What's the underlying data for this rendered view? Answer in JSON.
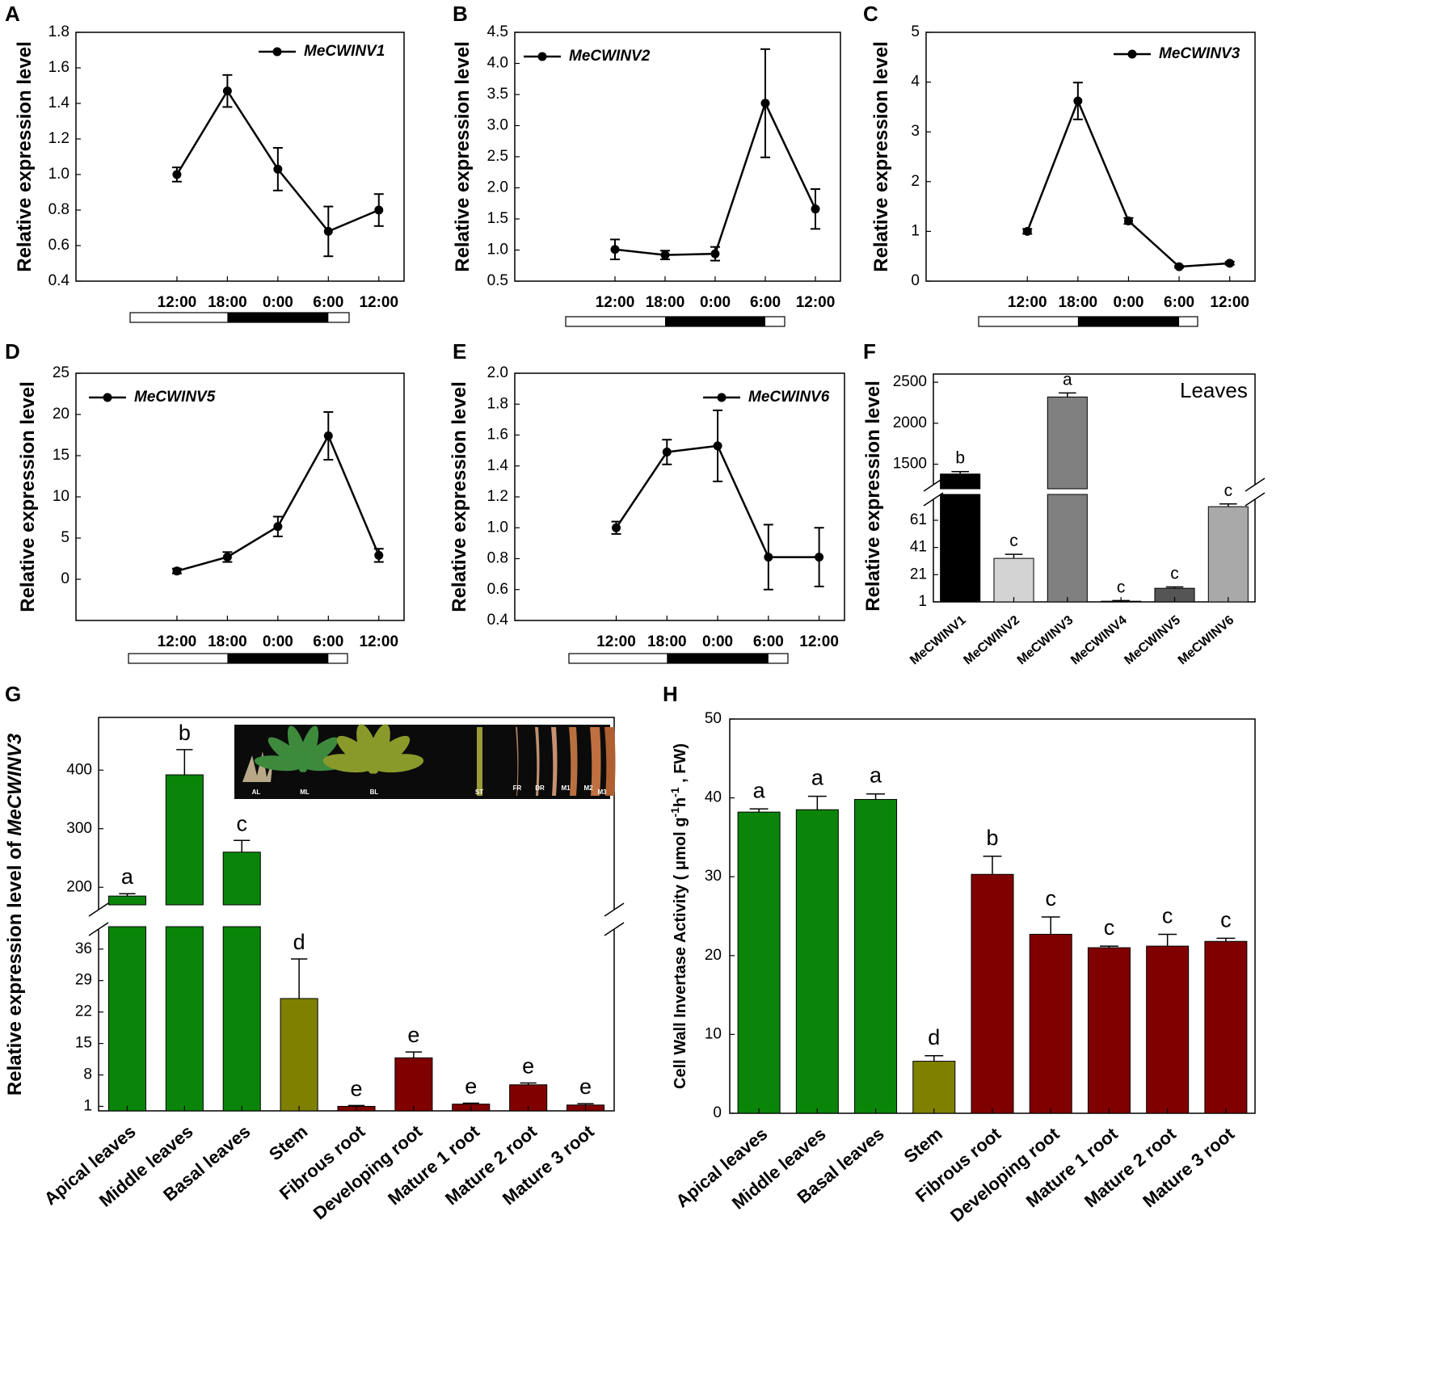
{
  "colors": {
    "line": "#000000",
    "leaves_green": "#0a850a",
    "stem_olive": "#808000",
    "root_darkred": "#800000",
    "bar_black": "#000000",
    "bar_light": "#d3d3d3",
    "bar_gray": "#808080",
    "bar_dark": "#555555",
    "bar_mid": "#a9a9a9"
  },
  "chart_data": [
    {
      "panel": "A",
      "type": "line",
      "legend": "MeCWINV1",
      "ylabel": "Relative expression level",
      "categories": [
        "12:00",
        "18:00",
        "0:00",
        "6:00",
        "12:00"
      ],
      "values": [
        1.0,
        1.47,
        1.03,
        0.68,
        0.8
      ],
      "errors": [
        0.04,
        0.09,
        0.12,
        0.14,
        0.09
      ],
      "ylim": [
        0.4,
        1.8
      ],
      "yticks": [
        0.4,
        0.6,
        0.8,
        1.0,
        1.2,
        1.4,
        1.6,
        1.8
      ],
      "ytick_decimals": 1,
      "xlim": [
        -1,
        5.5
      ],
      "photoperiod": "light-dark-light"
    },
    {
      "panel": "B",
      "type": "line",
      "legend": "MeCWINV2",
      "ylabel": "Relative expression level",
      "categories": [
        "12:00",
        "18:00",
        "0:00",
        "6:00",
        "12:00"
      ],
      "values": [
        1.01,
        0.92,
        0.94,
        3.36,
        1.66
      ],
      "errors": [
        0.16,
        0.07,
        0.11,
        0.87,
        0.32
      ],
      "ylim": [
        0.5,
        4.5
      ],
      "yticks": [
        0.5,
        1.0,
        1.5,
        2.0,
        2.5,
        3.0,
        3.5,
        4.0,
        4.5
      ],
      "ytick_decimals": 1,
      "xlim": [
        -1,
        5.5
      ],
      "photoperiod": "light-dark-light"
    },
    {
      "panel": "C",
      "type": "line",
      "legend": "MeCWINV3",
      "ylabel": "Relative expression level",
      "categories": [
        "12:00",
        "18:00",
        "0:00",
        "6:00",
        "12:00"
      ],
      "values": [
        1.0,
        3.62,
        1.21,
        0.29,
        0.36
      ],
      "errors": [
        0.05,
        0.37,
        0.06,
        0.02,
        0.03
      ],
      "ylim": [
        0,
        5
      ],
      "yticks": [
        0,
        1,
        2,
        3,
        4,
        5
      ],
      "ytick_decimals": 0,
      "xlim": [
        -1,
        5.5
      ],
      "photoperiod": "light-dark-light"
    },
    {
      "panel": "D",
      "type": "line",
      "legend": "MeCWINV5",
      "ylabel": "Relative expression level",
      "categories": [
        "12:00",
        "18:00",
        "0:00",
        "6:00",
        "12:00"
      ],
      "values": [
        1.0,
        2.7,
        6.4,
        17.4,
        2.9
      ],
      "errors": [
        0.3,
        0.6,
        1.2,
        2.9,
        0.8
      ],
      "ylim": [
        -5,
        25
      ],
      "yticks": [
        0,
        5,
        10,
        15,
        20,
        25
      ],
      "ytick_decimals": 0,
      "xlim": [
        -1,
        5.5
      ],
      "photoperiod": "light-dark-light"
    },
    {
      "panel": "E",
      "type": "line",
      "legend": "MeCWINV6",
      "ylabel": "Relative expression level",
      "categories": [
        "12:00",
        "18:00",
        "0:00",
        "6:00",
        "12:00"
      ],
      "values": [
        1.0,
        1.49,
        1.53,
        0.81,
        0.81
      ],
      "errors": [
        0.04,
        0.08,
        0.23,
        0.21,
        0.19
      ],
      "ylim": [
        0.4,
        2.0
      ],
      "yticks": [
        0.4,
        0.6,
        0.8,
        1.0,
        1.2,
        1.4,
        1.6,
        1.8,
        2.0
      ],
      "ytick_decimals": 1,
      "xlim": [
        -1,
        5.5
      ],
      "photoperiod": "light-dark-light"
    },
    {
      "panel": "F",
      "type": "bar",
      "title": "Leaves",
      "ylabel": "Relative expression level",
      "categories": [
        "MeCWINV1",
        "MeCWINV2",
        "MeCWINV3",
        "MeCWINV4",
        "MeCWINV5",
        "MeCWINV6"
      ],
      "values": [
        1380,
        33,
        2320,
        1.5,
        11,
        71
      ],
      "errors": [
        30,
        3,
        50,
        0.5,
        1,
        2
      ],
      "letters": [
        "b",
        "c",
        "a",
        "c",
        "c",
        "c"
      ],
      "bar_colors": [
        "#000000",
        "#d3d3d3",
        "#808080",
        "#555555",
        "#555555",
        "#a9a9a9"
      ],
      "y_axis_break": {
        "lower": [
          1,
          80
        ],
        "upper": [
          1200,
          2600
        ]
      },
      "yticks_lower": [
        1,
        21,
        41,
        61
      ],
      "yticks_upper": [
        1500,
        2000,
        2500
      ]
    },
    {
      "panel": "G",
      "type": "bar",
      "ylabel_prefix": "Relative expression level of ",
      "ylabel_gene": "MeCWINV3",
      "categories": [
        "Apical leaves",
        "Middle leaves",
        "Basal leaves",
        "Stem",
        "Fibrous root",
        "Developing root",
        "Mature 1 root",
        "Mature 2 root",
        "Mature 3 root"
      ],
      "values": [
        185,
        392,
        260,
        25,
        1,
        11.8,
        1.5,
        5.8,
        1.3
      ],
      "errors": [
        4,
        43,
        20,
        8.8,
        0.2,
        1.3,
        0.2,
        0.4,
        0.3
      ],
      "letters": [
        "a",
        "b",
        "c",
        "d",
        "e",
        "e",
        "e",
        "e",
        "e"
      ],
      "bar_colors": [
        "#0a850a",
        "#0a850a",
        "#0a850a",
        "#808000",
        "#800000",
        "#800000",
        "#800000",
        "#800000",
        "#800000"
      ],
      "y_axis_break": {
        "lower": [
          0,
          41
        ],
        "upper": [
          170,
          490
        ]
      },
      "yticks_lower": [
        1,
        8,
        15,
        22,
        29,
        36
      ],
      "yticks_upper": [
        200,
        300,
        400
      ],
      "inset_photo_labels": [
        "AL",
        "ML",
        "BL",
        "ST",
        "FR",
        "DR",
        "M1",
        "M2",
        "M3"
      ]
    },
    {
      "panel": "H",
      "type": "bar",
      "ylabel_main": "Cell Wall Invertase Activity ( μmol g",
      "ylabel_sup1": "-1",
      "ylabel_mid": "h",
      "ylabel_sup2": "-1",
      "ylabel_end": " , FW)",
      "categories": [
        "Apical leaves",
        "Middle leaves",
        "Basal leaves",
        "Stem",
        "Fibrous root",
        "Developing root",
        "Mature 1 root",
        "Mature 2 root",
        "Mature 3 root"
      ],
      "values": [
        38.2,
        38.5,
        39.8,
        6.6,
        30.3,
        22.7,
        21.0,
        21.2,
        21.8
      ],
      "errors": [
        0.4,
        1.7,
        0.7,
        0.7,
        2.3,
        2.2,
        0.2,
        1.5,
        0.4
      ],
      "letters": [
        "a",
        "a",
        "a",
        "d",
        "b",
        "c",
        "c",
        "c",
        "c"
      ],
      "bar_colors": [
        "#0a850a",
        "#0a850a",
        "#0a850a",
        "#808000",
        "#800000",
        "#800000",
        "#800000",
        "#800000",
        "#800000"
      ],
      "ylim": [
        0,
        50
      ],
      "yticks": [
        0,
        10,
        20,
        30,
        40,
        50
      ]
    }
  ]
}
